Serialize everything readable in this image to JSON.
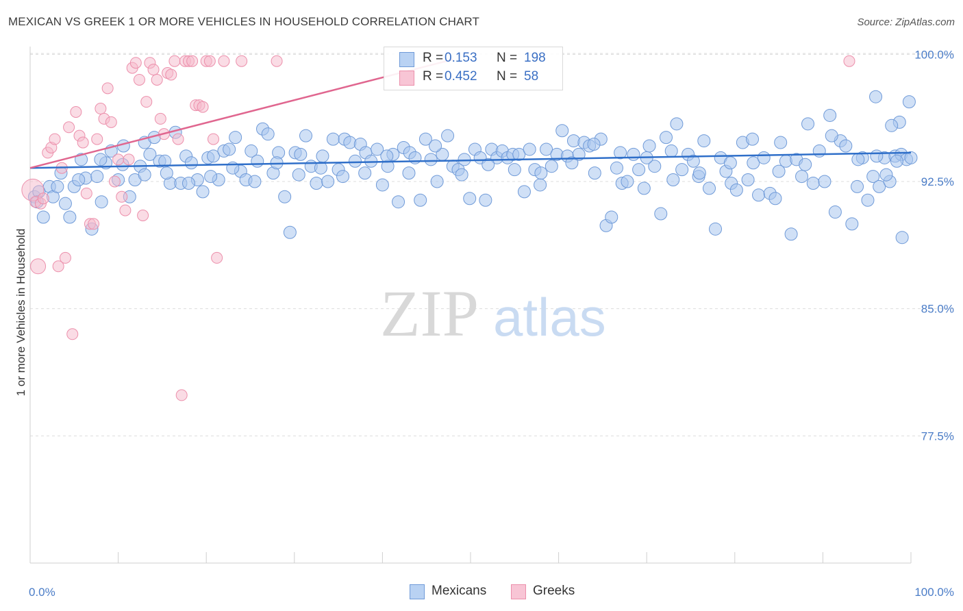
{
  "header": {
    "title": "MEXICAN VS GREEK 1 OR MORE VEHICLES IN HOUSEHOLD CORRELATION CHART",
    "source": "Source: ZipAtlas.com"
  },
  "watermark": {
    "zip": "ZIP",
    "atlas": "atlas"
  },
  "legend_top": {
    "rows": [
      {
        "r_label": "R =",
        "r_value": "0.153",
        "n_label": "N =",
        "n_value": "198"
      },
      {
        "r_label": "R =",
        "r_value": "0.452",
        "n_label": "N =",
        "n_value": "58"
      }
    ]
  },
  "legend_bottom": {
    "mexicans": "Mexicans",
    "greeks": "Greeks"
  },
  "colors": {
    "mexicans_fill": "#a9c6ef",
    "mexicans_stroke": "#6f9ad8",
    "mexicans_line": "#2f6fc9",
    "greeks_fill": "#f6b9cc",
    "greeks_stroke": "#ec8fab",
    "greeks_line": "#e0668f",
    "tick_text": "#4a7cc7",
    "grid": "#dcdcdc"
  },
  "chart_data": {
    "type": "scatter",
    "title": "MEXICAN VS GREEK 1 OR MORE VEHICLES IN HOUSEHOLD CORRELATION CHART",
    "xlabel": "",
    "ylabel": "1 or more Vehicles in Household",
    "xlim": [
      0,
      100
    ],
    "ylim": [
      70.0,
      100.7
    ],
    "x_tick_labels": [
      "0.0%",
      "100.0%"
    ],
    "y_ticks": [
      100.0,
      92.5,
      85.0,
      77.5
    ],
    "y_tick_labels": [
      "100.0%",
      "92.5%",
      "85.0%",
      "77.5%"
    ],
    "grid": "horizontal dashed",
    "legend": "top-center and bottom",
    "series": [
      {
        "name": "Mexicans",
        "r": 0.153,
        "n": 198,
        "trend": {
          "x": [
            0,
            100
          ],
          "y": [
            93.3,
            94.2
          ]
        },
        "points": [
          [
            0.5,
            91.6
          ],
          [
            1.5,
            90.4
          ],
          [
            2.2,
            92.2
          ],
          [
            2.6,
            91.6
          ],
          [
            3.1,
            92.2
          ],
          [
            4.0,
            91.2
          ],
          [
            4.5,
            90.4
          ],
          [
            5.0,
            92.2
          ],
          [
            5.8,
            93.8
          ],
          [
            6.3,
            92.7
          ],
          [
            7.0,
            89.7
          ],
          [
            7.6,
            92.8
          ],
          [
            8.1,
            91.3
          ],
          [
            8.6,
            93.6
          ],
          [
            9.2,
            94.3
          ],
          [
            10.0,
            92.6
          ],
          [
            10.6,
            94.6
          ],
          [
            11.3,
            91.6
          ],
          [
            11.9,
            92.6
          ],
          [
            12.5,
            93.4
          ],
          [
            13.0,
            94.8
          ],
          [
            13.6,
            94.1
          ],
          [
            14.1,
            95.1
          ],
          [
            14.7,
            93.7
          ],
          [
            15.3,
            93.7
          ],
          [
            15.9,
            92.4
          ],
          [
            16.5,
            95.4
          ],
          [
            17.1,
            92.4
          ],
          [
            17.7,
            94.0
          ],
          [
            18.3,
            93.6
          ],
          [
            19.0,
            92.6
          ],
          [
            19.6,
            91.9
          ],
          [
            20.2,
            93.9
          ],
          [
            20.8,
            94.0
          ],
          [
            21.4,
            92.6
          ],
          [
            22.0,
            94.3
          ],
          [
            22.6,
            94.4
          ],
          [
            23.3,
            95.1
          ],
          [
            23.9,
            93.1
          ],
          [
            24.5,
            92.6
          ],
          [
            25.1,
            94.3
          ],
          [
            25.8,
            93.7
          ],
          [
            26.4,
            95.6
          ],
          [
            27.0,
            95.3
          ],
          [
            27.6,
            93.0
          ],
          [
            28.2,
            94.2
          ],
          [
            28.9,
            91.6
          ],
          [
            29.5,
            89.5
          ],
          [
            30.1,
            94.2
          ],
          [
            30.7,
            94.1
          ],
          [
            31.3,
            95.2
          ],
          [
            31.9,
            93.4
          ],
          [
            32.5,
            92.4
          ],
          [
            33.2,
            94.0
          ],
          [
            33.8,
            92.5
          ],
          [
            34.4,
            95.0
          ],
          [
            35.0,
            93.2
          ],
          [
            35.7,
            95.0
          ],
          [
            36.3,
            94.8
          ],
          [
            36.9,
            93.7
          ],
          [
            37.5,
            94.7
          ],
          [
            38.1,
            94.2
          ],
          [
            38.7,
            93.7
          ],
          [
            39.4,
            94.4
          ],
          [
            40.0,
            92.3
          ],
          [
            40.6,
            93.4
          ],
          [
            41.2,
            94.1
          ],
          [
            41.8,
            91.3
          ],
          [
            42.4,
            94.5
          ],
          [
            43.1,
            94.2
          ],
          [
            43.7,
            93.9
          ],
          [
            44.3,
            91.4
          ],
          [
            44.9,
            95.0
          ],
          [
            45.5,
            93.8
          ],
          [
            46.2,
            92.5
          ],
          [
            46.8,
            94.1
          ],
          [
            47.4,
            95.2
          ],
          [
            48.0,
            93.4
          ],
          [
            48.6,
            93.2
          ],
          [
            49.3,
            93.8
          ],
          [
            49.9,
            91.5
          ],
          [
            50.5,
            94.4
          ],
          [
            51.1,
            93.9
          ],
          [
            51.7,
            91.4
          ],
          [
            52.4,
            94.4
          ],
          [
            53.0,
            93.9
          ],
          [
            53.6,
            94.3
          ],
          [
            54.2,
            93.9
          ],
          [
            54.8,
            94.1
          ],
          [
            55.5,
            94.1
          ],
          [
            56.1,
            91.9
          ],
          [
            56.7,
            94.4
          ],
          [
            57.3,
            93.2
          ],
          [
            57.9,
            92.3
          ],
          [
            58.6,
            94.4
          ],
          [
            59.2,
            93.4
          ],
          [
            59.8,
            94.1
          ],
          [
            60.4,
            95.5
          ],
          [
            61.0,
            94.0
          ],
          [
            61.7,
            94.9
          ],
          [
            62.3,
            94.1
          ],
          [
            62.9,
            94.8
          ],
          [
            63.5,
            94.6
          ],
          [
            64.1,
            93.0
          ],
          [
            64.8,
            95.0
          ],
          [
            65.4,
            89.9
          ],
          [
            66.0,
            90.4
          ],
          [
            66.6,
            93.3
          ],
          [
            67.2,
            92.4
          ],
          [
            67.8,
            92.5
          ],
          [
            68.5,
            94.1
          ],
          [
            69.1,
            93.2
          ],
          [
            69.7,
            92.1
          ],
          [
            70.3,
            94.6
          ],
          [
            70.9,
            93.4
          ],
          [
            71.6,
            90.6
          ],
          [
            72.2,
            95.1
          ],
          [
            72.8,
            94.3
          ],
          [
            73.4,
            95.9
          ],
          [
            74.0,
            93.2
          ],
          [
            74.7,
            94.1
          ],
          [
            75.3,
            93.7
          ],
          [
            75.9,
            92.8
          ],
          [
            76.5,
            94.9
          ],
          [
            77.1,
            92.1
          ],
          [
            77.8,
            89.7
          ],
          [
            78.4,
            93.9
          ],
          [
            79.0,
            93.1
          ],
          [
            79.6,
            92.4
          ],
          [
            80.2,
            92.0
          ],
          [
            80.9,
            94.8
          ],
          [
            81.5,
            92.6
          ],
          [
            82.1,
            93.6
          ],
          [
            82.7,
            91.7
          ],
          [
            83.3,
            93.9
          ],
          [
            84.0,
            91.8
          ],
          [
            84.6,
            91.5
          ],
          [
            85.2,
            94.8
          ],
          [
            85.8,
            93.7
          ],
          [
            86.4,
            89.4
          ],
          [
            87.0,
            93.8
          ],
          [
            87.6,
            92.8
          ],
          [
            88.3,
            95.9
          ],
          [
            88.9,
            92.4
          ],
          [
            89.6,
            94.3
          ],
          [
            90.2,
            92.5
          ],
          [
            90.8,
            96.4
          ],
          [
            91.4,
            90.7
          ],
          [
            92.0,
            94.9
          ],
          [
            92.6,
            94.6
          ],
          [
            93.3,
            90.0
          ],
          [
            93.9,
            92.2
          ],
          [
            94.5,
            93.9
          ],
          [
            95.1,
            91.4
          ],
          [
            95.7,
            92.8
          ],
          [
            96.4,
            92.2
          ],
          [
            97.0,
            93.9
          ],
          [
            97.6,
            92.5
          ],
          [
            98.2,
            94.0
          ],
          [
            98.9,
            94.1
          ],
          [
            99.5,
            93.8
          ],
          [
            100.0,
            93.9
          ],
          [
            97.2,
            92.9
          ],
          [
            98.4,
            93.7
          ],
          [
            99.0,
            89.2
          ],
          [
            96.1,
            94.0
          ],
          [
            94.0,
            93.8
          ],
          [
            91.0,
            95.2
          ],
          [
            88.0,
            93.5
          ],
          [
            85.0,
            93.1
          ],
          [
            82.0,
            95.0
          ],
          [
            79.5,
            93.6
          ],
          [
            76.0,
            93.0
          ],
          [
            73.0,
            92.6
          ],
          [
            70.0,
            93.9
          ],
          [
            67.0,
            94.2
          ],
          [
            64.0,
            94.7
          ],
          [
            61.5,
            93.6
          ],
          [
            58.0,
            93.0
          ],
          [
            55.0,
            93.2
          ],
          [
            52.0,
            93.5
          ],
          [
            49.0,
            92.9
          ],
          [
            46.0,
            94.6
          ],
          [
            43.0,
            93.0
          ],
          [
            40.5,
            94.0
          ],
          [
            38.0,
            93.0
          ],
          [
            35.5,
            92.8
          ],
          [
            33.0,
            93.3
          ],
          [
            30.5,
            92.9
          ],
          [
            28.0,
            93.6
          ],
          [
            25.5,
            92.5
          ],
          [
            23.0,
            93.3
          ],
          [
            20.5,
            92.8
          ],
          [
            18.0,
            92.4
          ],
          [
            15.5,
            93.0
          ],
          [
            13.0,
            92.9
          ],
          [
            10.5,
            93.5
          ],
          [
            8.0,
            93.8
          ],
          [
            5.5,
            92.6
          ],
          [
            3.5,
            93.0
          ],
          [
            1.0,
            91.9
          ],
          [
            0.8,
            91.3
          ],
          [
            99.8,
            97.2
          ],
          [
            98.7,
            96.0
          ],
          [
            97.8,
            95.8
          ],
          [
            96.0,
            97.5
          ]
        ]
      },
      {
        "name": "Greeks",
        "r": 0.452,
        "n": 58,
        "trend": {
          "x": [
            0,
            48
          ],
          "y": [
            93.3,
            99.7
          ]
        },
        "points": [
          [
            0.3,
            92.0
          ],
          [
            0.6,
            91.3
          ],
          [
            0.9,
            87.5
          ],
          [
            1.2,
            91.2
          ],
          [
            1.5,
            91.5
          ],
          [
            2.0,
            94.2
          ],
          [
            2.4,
            94.5
          ],
          [
            2.8,
            95.0
          ],
          [
            3.2,
            87.5
          ],
          [
            3.6,
            93.3
          ],
          [
            4.0,
            88.0
          ],
          [
            4.4,
            95.7
          ],
          [
            4.8,
            83.5
          ],
          [
            5.2,
            96.6
          ],
          [
            5.6,
            95.2
          ],
          [
            6.0,
            94.8
          ],
          [
            6.4,
            91.8
          ],
          [
            6.8,
            90.0
          ],
          [
            7.2,
            90.0
          ],
          [
            7.6,
            95.0
          ],
          [
            8.0,
            96.8
          ],
          [
            8.4,
            96.2
          ],
          [
            8.8,
            98.0
          ],
          [
            9.2,
            96.0
          ],
          [
            9.6,
            92.5
          ],
          [
            10.0,
            93.8
          ],
          [
            10.4,
            91.6
          ],
          [
            10.8,
            90.8
          ],
          [
            11.2,
            93.8
          ],
          [
            11.6,
            99.2
          ],
          [
            12.0,
            99.5
          ],
          [
            12.4,
            98.5
          ],
          [
            12.8,
            90.5
          ],
          [
            13.2,
            97.2
          ],
          [
            13.6,
            99.5
          ],
          [
            14.0,
            99.1
          ],
          [
            14.4,
            98.5
          ],
          [
            14.8,
            96.2
          ],
          [
            15.2,
            95.3
          ],
          [
            15.6,
            98.9
          ],
          [
            16.0,
            98.8
          ],
          [
            16.4,
            99.6
          ],
          [
            16.8,
            95.0
          ],
          [
            17.2,
            79.9
          ],
          [
            17.6,
            99.6
          ],
          [
            18.0,
            99.6
          ],
          [
            18.4,
            99.6
          ],
          [
            18.8,
            97.0
          ],
          [
            19.2,
            97.0
          ],
          [
            19.6,
            96.9
          ],
          [
            20.0,
            99.6
          ],
          [
            20.4,
            99.6
          ],
          [
            20.8,
            95.0
          ],
          [
            21.2,
            88.0
          ],
          [
            22.0,
            99.6
          ],
          [
            24.0,
            99.6
          ],
          [
            28.0,
            99.6
          ],
          [
            93.0,
            99.6
          ]
        ]
      }
    ]
  }
}
